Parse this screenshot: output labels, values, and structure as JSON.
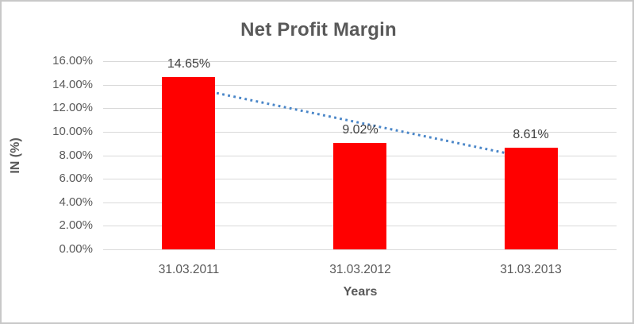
{
  "chart_data": {
    "type": "bar",
    "title": "Net Profit Margin",
    "categories": [
      "31.03.2011",
      "31.03.2012",
      "31.03.2013"
    ],
    "values": [
      14.65,
      9.02,
      8.61
    ],
    "data_labels": [
      "14.65%",
      "9.02%",
      "8.61%"
    ],
    "xlabel": "Years",
    "ylabel": "IN (%)",
    "ylim": [
      0,
      16
    ],
    "ytick_step": 2,
    "ytick_labels": [
      "0.00%",
      "2.00%",
      "4.00%",
      "6.00%",
      "8.00%",
      "10.00%",
      "12.00%",
      "14.00%",
      "16.00%"
    ],
    "grid": true,
    "legend": "none",
    "bar_color": "#ff0000",
    "trendline": {
      "type": "linear",
      "style": "dotted",
      "color": "#4a86c8",
      "start_value": 13.78,
      "end_value": 7.74
    },
    "colors": {
      "title_text": "#595959",
      "tick_text": "#595959",
      "data_label_text": "#404040",
      "gridline": "#d9d9d9",
      "frame_border": "#c8c8c8",
      "background": "#ffffff"
    }
  }
}
